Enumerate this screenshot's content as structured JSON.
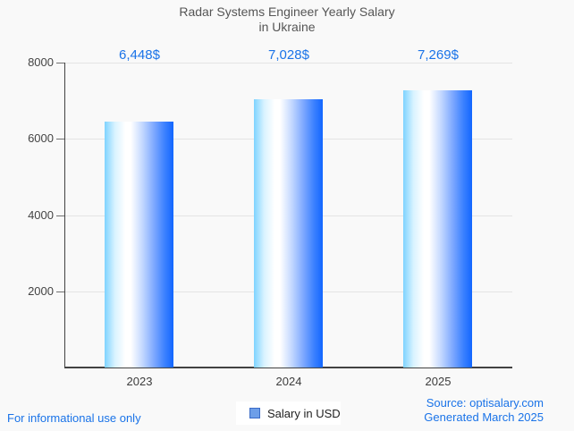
{
  "title": {
    "line1": "Radar Systems Engineer Yearly Salary",
    "line2": "in Ukraine"
  },
  "chart_data": {
    "type": "bar",
    "title": "Radar Systems Engineer Yearly Salary in Ukraine",
    "categories": [
      "2023",
      "2024",
      "2025"
    ],
    "series": [
      {
        "name": "Salary in USD",
        "values": [
          6448,
          7028,
          7269
        ]
      }
    ],
    "value_labels": [
      "6,448$",
      "7,028$",
      "7,269$"
    ],
    "xlabel": "",
    "ylabel": "",
    "ylim": [
      0,
      8000
    ],
    "yticks": [
      2000,
      4000,
      6000,
      8000
    ],
    "grid": true,
    "legend_position": "bottom",
    "bar_gradient": [
      "#7ed3ff",
      "#ffffff",
      "#1266ff"
    ],
    "value_label_color": "#1a73e8"
  },
  "legend": {
    "label": "Salary in USD",
    "swatch_fill": "#6d9ee8",
    "swatch_border": "#3a6bc7"
  },
  "footer": {
    "disclaimer": "For informational use only",
    "source": "Source: optisalary.com",
    "generated": "Generated March 2025"
  },
  "colors": {
    "background": "#f9f9f9",
    "title_text": "#555555",
    "axis": "#424242",
    "gridline": "#e4e4e4",
    "tick_text": "#444444",
    "accent_blue": "#1a73e8"
  }
}
